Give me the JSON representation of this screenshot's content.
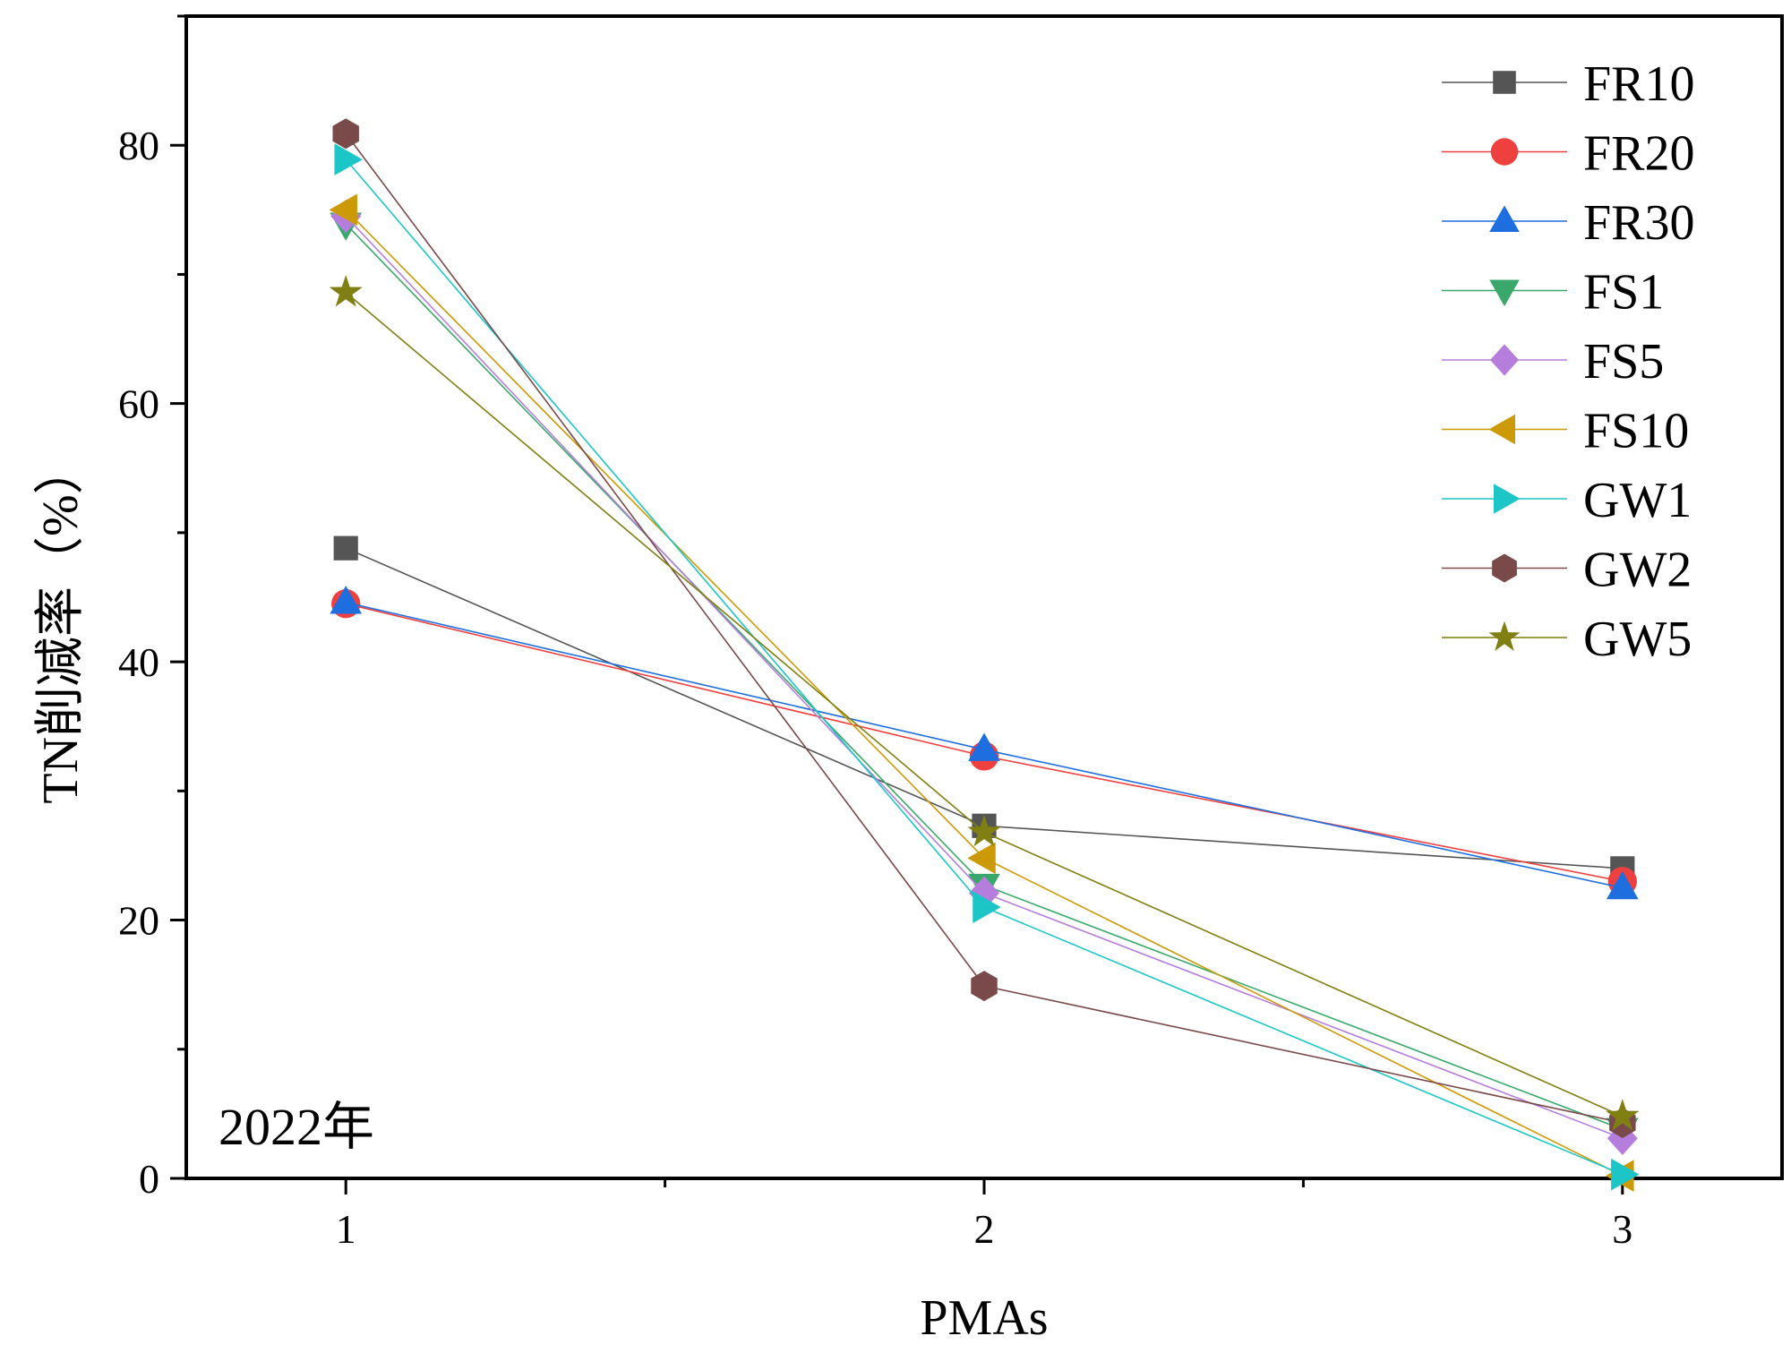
{
  "chart_data": {
    "type": "line",
    "title": "",
    "xlabel": "PMAs",
    "ylabel": "TN削减率（%）",
    "annotation": "2022年",
    "x": [
      1,
      2,
      3
    ],
    "xlim": [
      0.75,
      3.25
    ],
    "ylim": [
      0,
      90
    ],
    "xticks": [
      1,
      2,
      3
    ],
    "yticks": [
      0,
      20,
      40,
      60,
      80
    ],
    "grid": false,
    "legend_position": "top-right",
    "series": [
      {
        "name": "FR10",
        "marker": "square",
        "color": "#555555",
        "values": [
          48.8,
          27.3,
          24.0
        ]
      },
      {
        "name": "FR20",
        "marker": "circle",
        "color": "#ef4040",
        "values": [
          44.5,
          32.7,
          23.0
        ]
      },
      {
        "name": "FR30",
        "marker": "triangle-up",
        "color": "#1e6ee0",
        "values": [
          44.6,
          33.2,
          22.5
        ]
      },
      {
        "name": "FS1",
        "marker": "triangle-down",
        "color": "#3aa86b",
        "values": [
          73.9,
          22.7,
          3.8
        ]
      },
      {
        "name": "FS5",
        "marker": "diamond",
        "color": "#b57edc",
        "values": [
          74.5,
          22.1,
          3.1
        ]
      },
      {
        "name": "FS10",
        "marker": "triangle-left",
        "color": "#cc9a06",
        "values": [
          75.0,
          24.8,
          0.2
        ]
      },
      {
        "name": "GW1",
        "marker": "triangle-right",
        "color": "#1cc6c6",
        "values": [
          78.9,
          21.0,
          0.3
        ]
      },
      {
        "name": "GW2",
        "marker": "hexagon",
        "color": "#7a4a4a",
        "values": [
          80.9,
          14.9,
          4.3
        ]
      },
      {
        "name": "GW5",
        "marker": "star",
        "color": "#7f7f12",
        "values": [
          68.6,
          26.8,
          4.8
        ]
      }
    ]
  }
}
